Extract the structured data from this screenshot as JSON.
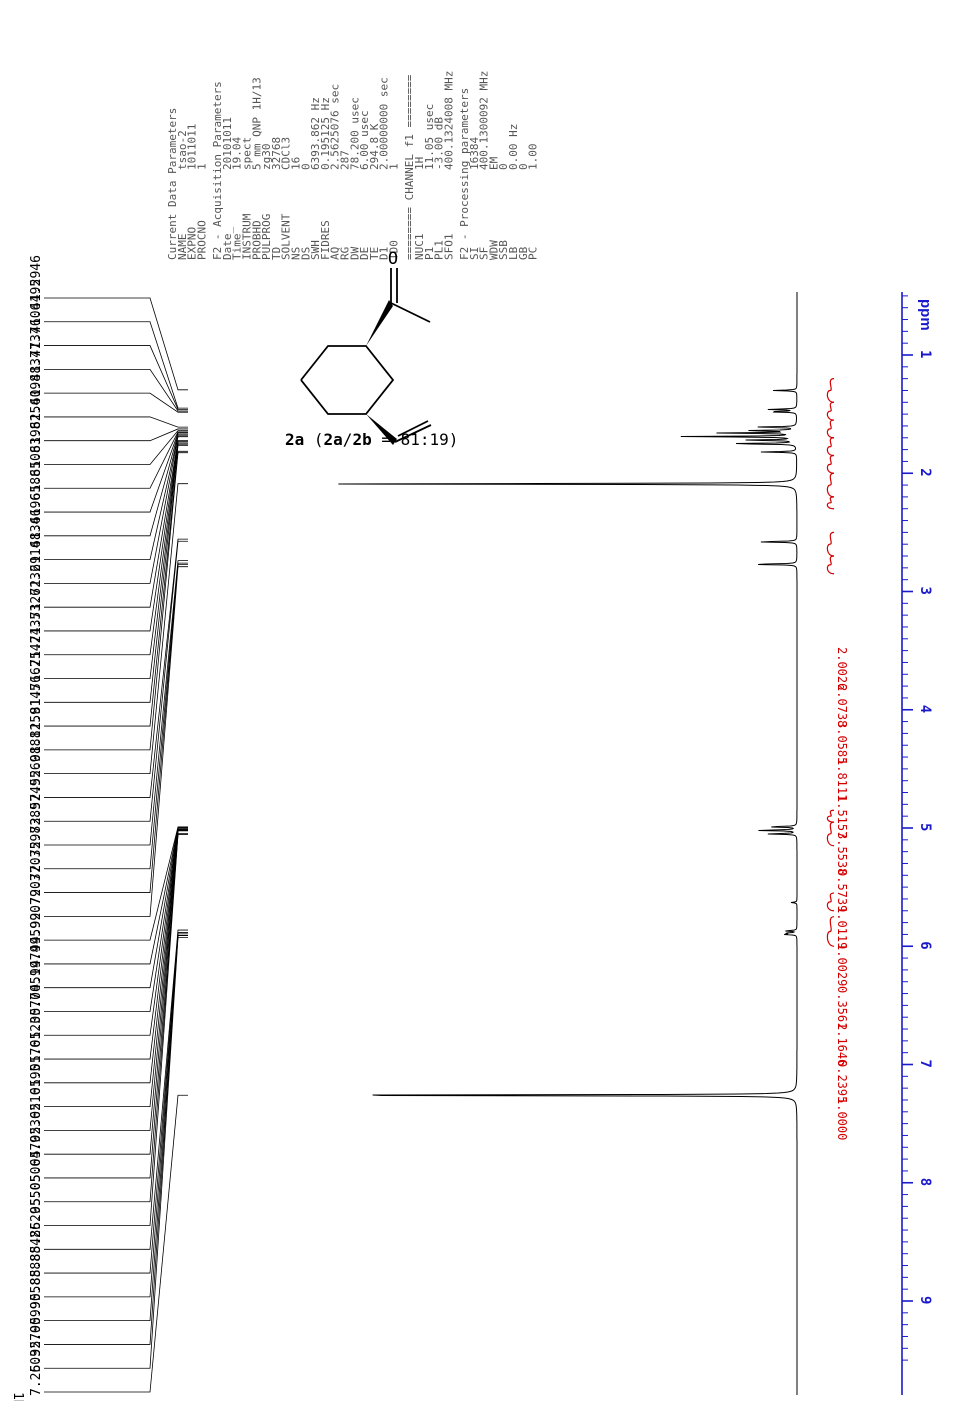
{
  "nucleus_label": "1H",
  "compound_label": {
    "main": "2a",
    "open": " (",
    "ratio_a": "2a",
    "slash": "/",
    "ratio_b": "2b",
    "ratio_text": " = 81:19)"
  },
  "structure_atom": "O",
  "colors": {
    "spectrum": "#000000",
    "integral": "#d40000",
    "axis": "#1a1acc",
    "parameters": "#555555"
  },
  "peak_labels": [
    "7.2603",
    "5.9270",
    "5.9099",
    "5.9058",
    "5.8888",
    "5.8842",
    "5.8629",
    "5.0550",
    "5.0506",
    "5.0479",
    "5.0236",
    "5.0216",
    "5.0195",
    "5.0176",
    "5.0123",
    "5.0077",
    "5.0051",
    "4.9974",
    "4.9959",
    "4.9907",
    "2.7903",
    "2.7703",
    "2.7598",
    "2.7389",
    "2.5749",
    "2.5569",
    "2.0881",
    "1.8259",
    "1.8145",
    "1.7662",
    "1.7542",
    "1.7435",
    "1.7326",
    "1.7232",
    "1.6914",
    "1.6834",
    "1.6696",
    "1.6588",
    "1.6508",
    "1.6398",
    "1.6254",
    "1.6098",
    "1.4837",
    "1.4737",
    "1.4606",
    "1.4495",
    "1.2946"
  ],
  "parameters": {
    "current_title": "Current Data Parameters",
    "current": [
      [
        "NAME",
        "tsao-2"
      ],
      [
        "EXPNO",
        "1011011"
      ],
      [
        "PROCNO",
        "1"
      ]
    ],
    "acq_title": "F2 - Acquisition Parameters",
    "acq": [
      [
        "Date_",
        "20101011"
      ],
      [
        "Time",
        "19.04"
      ],
      [
        "INSTRUM",
        "spect"
      ],
      [
        "PROBHD",
        "5 mm QNP 1H/13"
      ],
      [
        "PULPROG",
        "zg30"
      ],
      [
        "TD",
        "32768"
      ],
      [
        "SOLVENT",
        "CDCl3"
      ],
      [
        "NS",
        "16"
      ],
      [
        "DS",
        "0"
      ],
      [
        "SWH",
        "6393.862 Hz"
      ],
      [
        "FIDRES",
        "0.195125 Hz"
      ],
      [
        "AQ",
        "2.5625076 sec"
      ],
      [
        "RG",
        "287"
      ],
      [
        "DW",
        "78.200 usec"
      ],
      [
        "DE",
        "6.00 usec"
      ],
      [
        "TE",
        "294.8 K"
      ],
      [
        "D1",
        "2.00000000 sec"
      ],
      [
        "TD0",
        "1"
      ]
    ],
    "channel_title": "======== CHANNEL f1 ========",
    "channel": [
      [
        "NUC1",
        "1H"
      ],
      [
        "P1",
        "11.05 usec"
      ],
      [
        "PL1",
        "-3.00 dB"
      ],
      [
        "SFO1",
        "400.1324008 MHz"
      ]
    ],
    "proc_title": "F2 - Processing parameters",
    "proc": [
      [
        "SI",
        "16384"
      ],
      [
        "SF",
        "400.1300092 MHz"
      ],
      [
        "WDW",
        "EM"
      ],
      [
        "SSB",
        "0"
      ],
      [
        "LB",
        "0.00 Hz"
      ],
      [
        "GB",
        "0"
      ],
      [
        "PC",
        "1.00"
      ]
    ]
  },
  "chart_data": {
    "type": "line",
    "title": "",
    "xlabel": "ppm",
    "ylabel": "",
    "x_range": [
      9.5,
      -0.5
    ],
    "x_ticks": [
      "1",
      "2",
      "3",
      "4",
      "5",
      "6",
      "7",
      "8",
      "9"
    ],
    "tick_values": [
      1,
      2,
      3,
      4,
      5,
      6,
      7,
      8,
      9
    ],
    "peaks": [
      {
        "ppm": 7.26,
        "height": 0.96
      },
      {
        "ppm": 5.9,
        "height": 0.02
      },
      {
        "ppm": 5.89,
        "height": 0.02
      },
      {
        "ppm": 5.87,
        "height": 0.02
      },
      {
        "ppm": 5.63,
        "height": 0.01
      },
      {
        "ppm": 5.05,
        "height": 0.05
      },
      {
        "ppm": 5.02,
        "height": 0.07
      },
      {
        "ppm": 4.99,
        "height": 0.05
      },
      {
        "ppm": 2.77,
        "height": 0.08
      },
      {
        "ppm": 2.58,
        "height": 0.07
      },
      {
        "ppm": 2.09,
        "height": 0.82
      },
      {
        "ppm": 1.82,
        "height": 0.06
      },
      {
        "ppm": 1.75,
        "height": 0.12
      },
      {
        "ppm": 1.72,
        "height": 0.09
      },
      {
        "ppm": 1.69,
        "height": 0.2
      },
      {
        "ppm": 1.66,
        "height": 0.13
      },
      {
        "ppm": 1.64,
        "height": 0.09
      },
      {
        "ppm": 1.61,
        "height": 0.07
      },
      {
        "ppm": 1.48,
        "height": 0.05
      },
      {
        "ppm": 1.46,
        "height": 0.05
      },
      {
        "ppm": 1.3,
        "height": 0.04
      }
    ],
    "integrals": [
      {
        "from": 6.0,
        "to": 5.75,
        "label": "1.0000"
      },
      {
        "from": 5.7,
        "to": 5.55,
        "label": "0.2395"
      },
      {
        "from": 5.15,
        "to": 4.95,
        "label": "2.1646"
      },
      {
        "from": 4.95,
        "to": 4.85,
        "label": "0.3561"
      },
      {
        "from": 2.85,
        "to": 2.7,
        "label": "1.0029"
      },
      {
        "from": 2.7,
        "to": 2.5,
        "label": "1.0119"
      },
      {
        "from": 2.3,
        "to": 2.2,
        "label": "0.5739"
      },
      {
        "from": 2.2,
        "to": 2.0,
        "label": "3.5538"
      },
      {
        "from": 2.0,
        "to": 1.85,
        "label": "1.5157"
      },
      {
        "from": 1.85,
        "to": 1.7,
        "label": "1.8111"
      },
      {
        "from": 1.7,
        "to": 1.55,
        "label": "3.0585"
      },
      {
        "from": 1.55,
        "to": 1.4,
        "label": "2.0738"
      },
      {
        "from": 1.4,
        "to": 1.2,
        "label": "2.0026"
      }
    ]
  }
}
